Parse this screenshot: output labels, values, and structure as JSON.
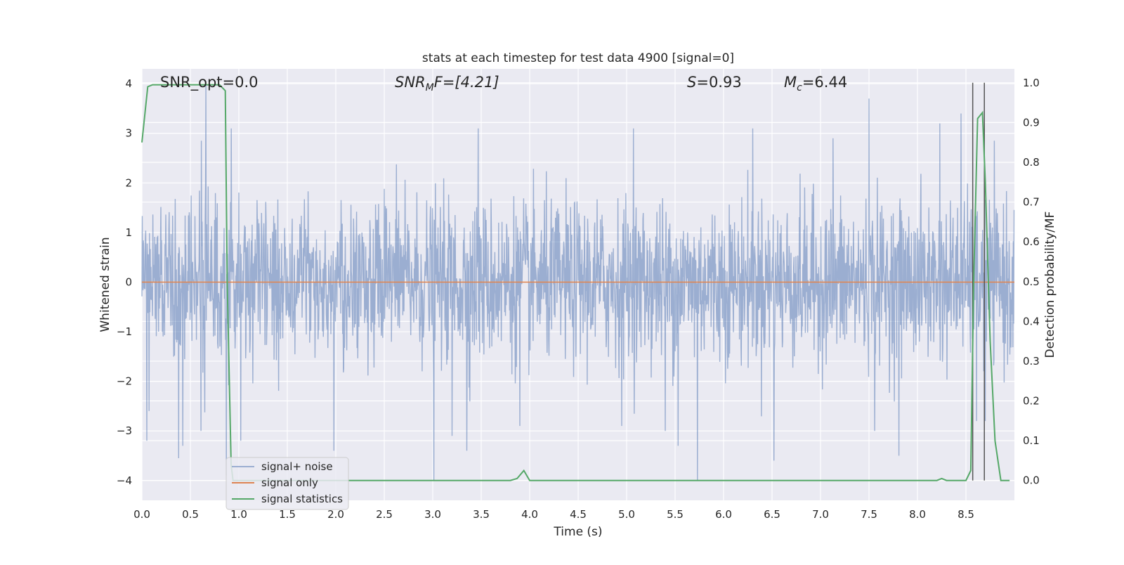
{
  "chart_data": {
    "type": "line",
    "title": "stats at each timestep for test data 4900 [signal=0]",
    "xlabel": "Time (s)",
    "ylabel": "Whitened strain",
    "y2label": "Detection probability/MF",
    "xlim": [
      0.0,
      9.0
    ],
    "ylim": [
      -4.4,
      4.3
    ],
    "y2lim": [
      -0.05,
      1.035
    ],
    "x_ticks": [
      0.0,
      0.5,
      1.0,
      1.5,
      2.0,
      2.5,
      3.0,
      3.5,
      4.0,
      4.5,
      5.0,
      5.5,
      6.0,
      6.5,
      7.0,
      7.5,
      8.0,
      8.5
    ],
    "x_tick_labels": [
      "0.0",
      "0.5",
      "1.0",
      "1.5",
      "2.0",
      "2.5",
      "3.0",
      "3.5",
      "4.0",
      "4.5",
      "5.0",
      "5.5",
      "6.0",
      "6.5",
      "7.0",
      "7.5",
      "8.0",
      "8.5"
    ],
    "y_ticks": [
      4,
      3,
      2,
      1,
      0,
      -1,
      -2,
      -3,
      -4
    ],
    "y_tick_labels": [
      "4",
      "3",
      "2",
      "1",
      "0",
      "−1",
      "−2",
      "−3",
      "−4"
    ],
    "y2_ticks": [
      1.0,
      0.9,
      0.8,
      0.7,
      0.6,
      0.5,
      0.4,
      0.3,
      0.2,
      0.1,
      0.0
    ],
    "y2_tick_labels": [
      "1.0",
      "0.9",
      "0.8",
      "0.7",
      "0.6",
      "0.5",
      "0.4",
      "0.3",
      "0.2",
      "0.1",
      "0.0"
    ],
    "grid": true,
    "legend_position": "lower-left",
    "annotations": {
      "snr_opt": "SNR_opt=0.0",
      "snr_mf_sym": "SNR",
      "snr_mf_sub": "M",
      "snr_mf_rest": "F=[4.21]",
      "s_sym": "S",
      "s_rest": "=0.93",
      "mc_sym": "M",
      "mc_sub": "c",
      "mc_rest": "=6.44"
    },
    "vlines": [
      8.57,
      8.69
    ],
    "series": [
      {
        "name": "signal+ noise",
        "color": "#4c72b0",
        "alpha": 0.5,
        "axis": "left",
        "description_kind": "noise",
        "std": 0.8,
        "duration": 9.0,
        "samples": 2304,
        "extreme_spikes": [
          [
            0.05,
            -3.2
          ],
          [
            0.38,
            -3.55
          ],
          [
            0.42,
            -3.3
          ],
          [
            0.61,
            -3.0
          ],
          [
            0.66,
            4.0
          ],
          [
            0.87,
            -3.9
          ],
          [
            0.92,
            3.1
          ],
          [
            1.02,
            -3.2
          ],
          [
            1.98,
            -3.4
          ],
          [
            3.01,
            -4.0
          ],
          [
            3.2,
            -3.1
          ],
          [
            3.35,
            -3.4
          ],
          [
            3.47,
            3.1
          ],
          [
            3.9,
            -2.9
          ],
          [
            4.95,
            -2.9
          ],
          [
            5.07,
            3.1
          ],
          [
            5.4,
            -3.0
          ],
          [
            5.53,
            -3.3
          ],
          [
            5.73,
            -4.0
          ],
          [
            6.3,
            3.1
          ],
          [
            6.52,
            -3.6
          ],
          [
            7.13,
            2.9
          ],
          [
            7.5,
            3.7
          ],
          [
            7.56,
            -3.0
          ],
          [
            7.81,
            -3.5
          ],
          [
            8.23,
            3.2
          ],
          [
            8.45,
            3.4
          ],
          [
            8.61,
            -2.8
          ],
          [
            8.7,
            -2.8
          ]
        ]
      },
      {
        "name": "signal only",
        "color": "#dd8452",
        "axis": "left",
        "x": [
          0.0,
          9.0
        ],
        "y": [
          0.0,
          0.0
        ]
      },
      {
        "name": "signal statistics",
        "color": "#55a868",
        "axis": "right",
        "x": [
          0.0,
          0.06,
          0.11,
          0.2,
          0.3,
          0.5,
          0.6,
          0.7,
          0.8,
          0.86,
          0.88,
          0.92,
          0.94,
          1.0,
          1.5,
          2.0,
          3.0,
          3.5,
          3.8,
          3.87,
          3.94,
          4.0,
          4.5,
          5.0,
          6.0,
          7.0,
          8.0,
          8.2,
          8.25,
          8.3,
          8.4,
          8.5,
          8.55,
          8.58,
          8.62,
          8.67,
          8.7,
          8.75,
          8.8,
          8.86,
          8.95
        ],
        "y": [
          0.85,
          0.99,
          0.995,
          0.995,
          0.995,
          0.995,
          0.995,
          0.995,
          0.995,
          0.98,
          0.5,
          0.04,
          0.0,
          0.0,
          0.0,
          0.0,
          0.0,
          0.0,
          0.0,
          0.005,
          0.025,
          0.0,
          0.0,
          0.0,
          0.0,
          0.0,
          0.0,
          0.0,
          0.005,
          0.0,
          0.0,
          0.0,
          0.025,
          0.5,
          0.91,
          0.925,
          0.75,
          0.35,
          0.1,
          0.0,
          0.0
        ]
      }
    ]
  }
}
